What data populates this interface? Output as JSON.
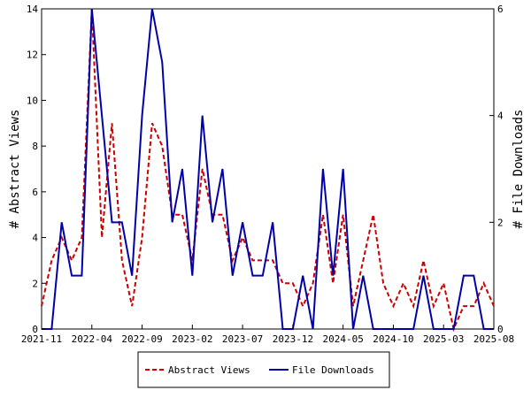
{
  "chart_data": {
    "type": "line",
    "title": "",
    "xlabel": "",
    "ylabel": "# Abstract Views",
    "ylabel_right": "# File Downloads",
    "x_tick_labels": [
      "2021-11",
      "2022-04",
      "2022-09",
      "2023-02",
      "2023-07",
      "2023-12",
      "2024-05",
      "2024-10",
      "2025-03",
      "2025-08"
    ],
    "y_ticks_left": [
      "0",
      "2",
      "4",
      "6",
      "8",
      "10",
      "12",
      "14"
    ],
    "y_ticks_right": [
      "0",
      "2",
      "4",
      "6"
    ],
    "ylim_left": [
      0,
      14
    ],
    "ylim_right": [
      0,
      6
    ],
    "x": [
      "2021-11",
      "2021-12",
      "2022-01",
      "2022-02",
      "2022-03",
      "2022-04",
      "2022-05",
      "2022-06",
      "2022-07",
      "2022-08",
      "2022-09",
      "2022-10",
      "2022-11",
      "2022-12",
      "2023-01",
      "2023-02",
      "2023-03",
      "2023-04",
      "2023-05",
      "2023-06",
      "2023-07",
      "2023-08",
      "2023-09",
      "2023-10",
      "2023-11",
      "2023-12",
      "2024-01",
      "2024-02",
      "2024-03",
      "2024-04",
      "2024-05",
      "2024-06",
      "2024-07",
      "2024-08",
      "2024-09",
      "2024-10",
      "2024-11",
      "2024-12",
      "2025-01",
      "2025-02",
      "2025-03",
      "2025-04",
      "2025-05",
      "2025-06",
      "2025-07",
      "2025-08"
    ],
    "series": [
      {
        "name": "Abstract Views",
        "axis": "left",
        "color": "#cc0000",
        "dash": "dashed",
        "values": [
          1,
          3,
          4,
          3,
          4,
          14,
          4,
          9,
          3,
          1,
          4,
          9,
          8,
          5,
          5,
          3,
          7,
          5,
          5,
          3,
          4,
          3,
          3,
          3,
          2,
          2,
          1,
          2,
          5,
          2,
          5,
          1,
          3,
          5,
          2,
          1,
          2,
          1,
          3,
          1,
          2,
          0,
          1,
          1,
          2,
          1
        ]
      },
      {
        "name": "File Downloads",
        "axis": "right",
        "color": "#0000aa",
        "dash": "solid",
        "values": [
          0,
          0,
          2,
          1,
          1,
          6,
          4,
          2,
          2,
          1,
          4,
          6,
          5,
          2,
          3,
          1,
          4,
          2,
          3,
          1,
          2,
          1,
          1,
          2,
          0,
          0,
          1,
          0,
          3,
          1,
          3,
          0,
          1,
          0,
          0,
          0,
          0,
          0,
          1,
          0,
          0,
          0,
          1,
          1,
          0,
          0
        ]
      }
    ],
    "grid": false,
    "legend": "bottom"
  }
}
